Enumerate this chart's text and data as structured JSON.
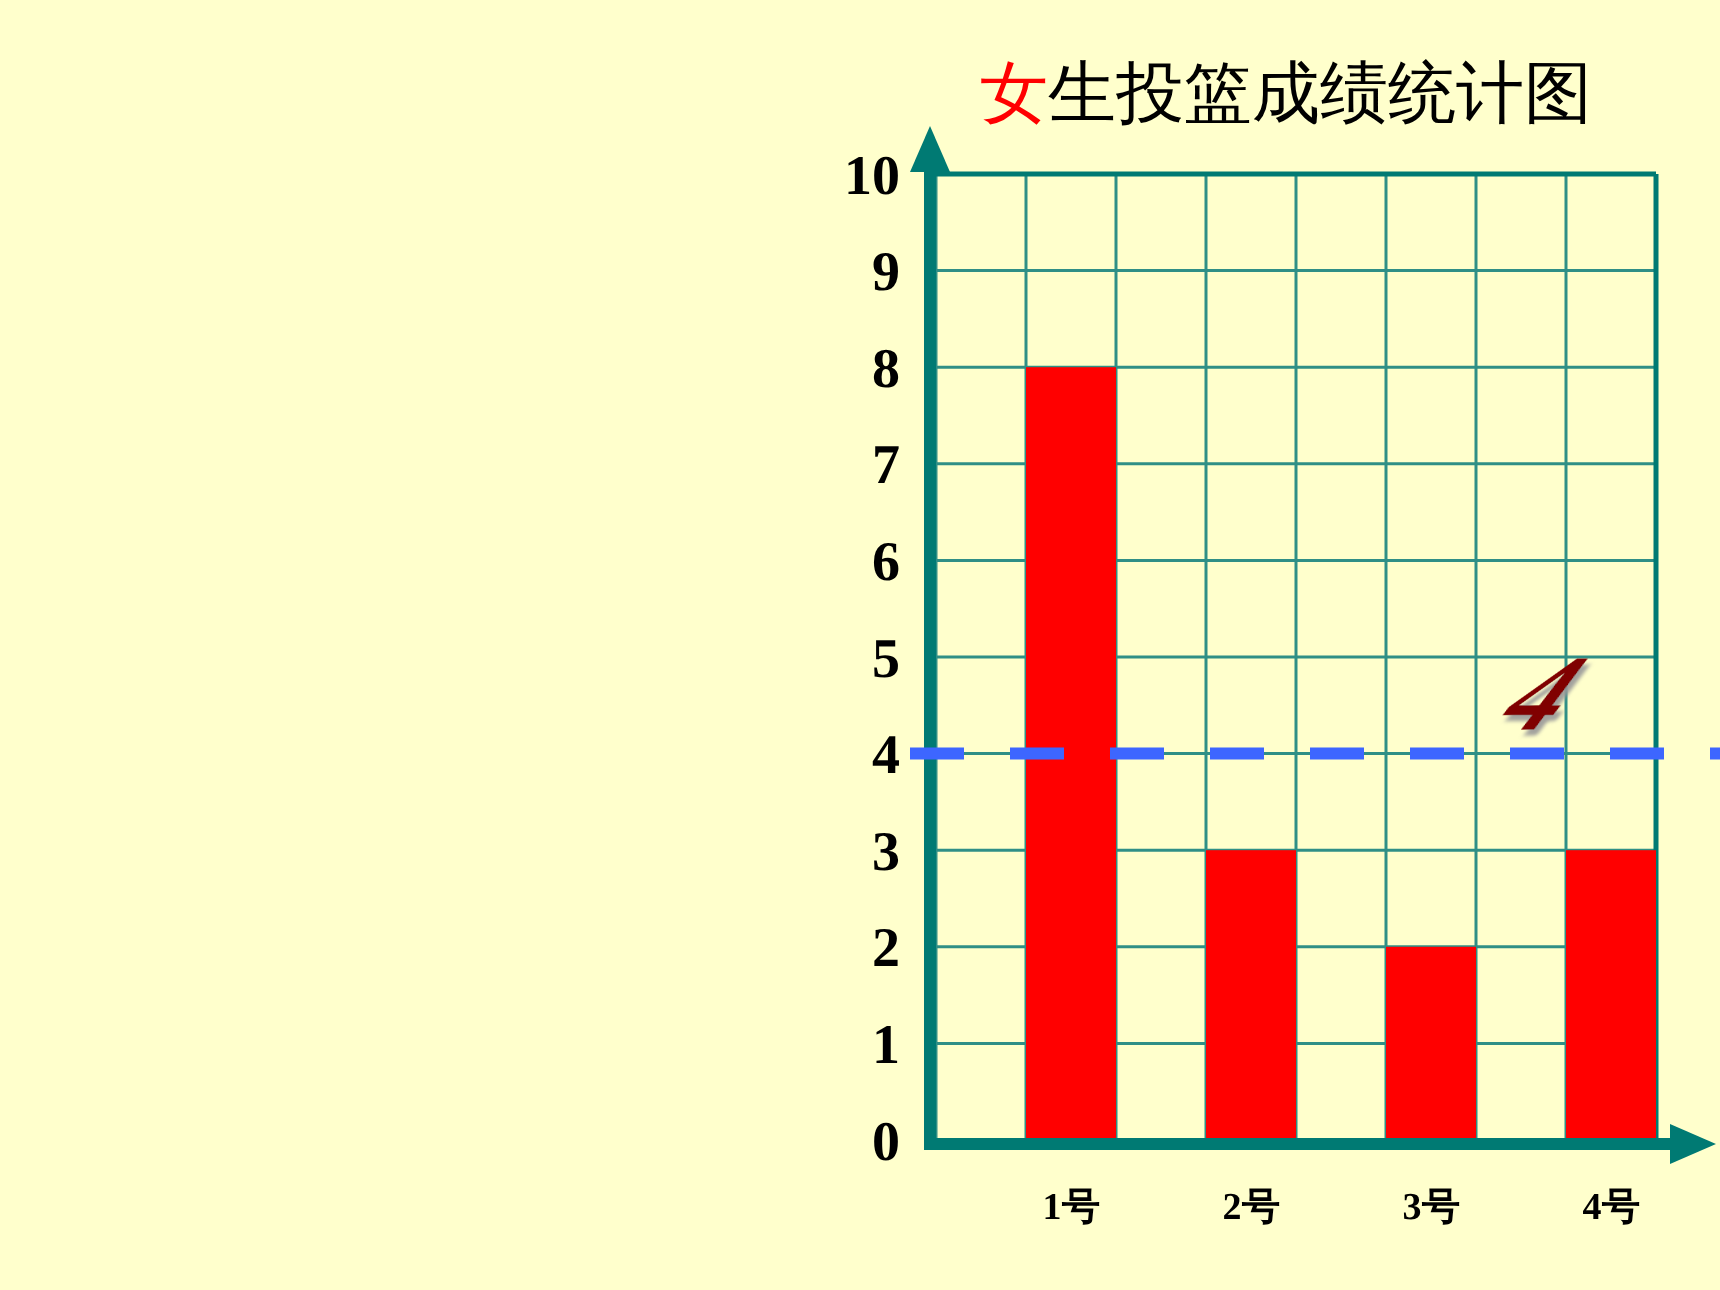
{
  "chart_data": {
    "type": "bar",
    "title": "女生投篮成绩统计图",
    "categories": [
      "1号",
      "2号",
      "3号",
      "4号"
    ],
    "values": [
      8,
      3,
      2,
      3
    ],
    "color": "#ff0000",
    "ylim": [
      0,
      10
    ],
    "yticks": [
      0,
      1,
      2,
      3,
      4,
      5,
      6,
      7,
      8,
      9,
      10
    ],
    "grid": true,
    "ref_lines": [
      {
        "axis": "y",
        "value": 4,
        "label": "4",
        "color": "#3d66ff",
        "line_style": "dashed"
      }
    ]
  }
}
